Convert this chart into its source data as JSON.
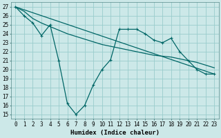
{
  "xlabel": "Humidex (Indice chaleur)",
  "bg_color": "#cce8e8",
  "grid_color": "#99cccc",
  "line_color": "#006666",
  "xlim": [
    -0.5,
    23.5
  ],
  "ylim": [
    14.5,
    27.5
  ],
  "xticks": [
    0,
    1,
    2,
    3,
    4,
    5,
    6,
    7,
    8,
    9,
    10,
    11,
    12,
    13,
    14,
    15,
    16,
    17,
    18,
    19,
    20,
    21,
    22,
    23
  ],
  "yticks": [
    15,
    16,
    17,
    18,
    19,
    20,
    21,
    22,
    23,
    24,
    25,
    26,
    27
  ],
  "series1_x": [
    0,
    1,
    2,
    3,
    4,
    5,
    6,
    7,
    8,
    9,
    10,
    11,
    12,
    13,
    14,
    15,
    16,
    17,
    18,
    19,
    20,
    21,
    22,
    23
  ],
  "series1_y": [
    27,
    26,
    25.2,
    23.8,
    25,
    21,
    16.2,
    15,
    16,
    18.3,
    20,
    21.1,
    24.5,
    24.5,
    24.5,
    24.0,
    23.3,
    23.0,
    23.5,
    22.0,
    21.0,
    20.0,
    19.5,
    19.5
  ],
  "series2_x": [
    0,
    1,
    2,
    3,
    4,
    5,
    6,
    7,
    8,
    9,
    10,
    11,
    12,
    13,
    14,
    15,
    16,
    17,
    18,
    19,
    20,
    21,
    22,
    23
  ],
  "series2_y": [
    27.0,
    26.5,
    25.7,
    25.2,
    24.8,
    24.4,
    24.0,
    23.7,
    23.4,
    23.1,
    22.8,
    22.6,
    22.4,
    22.2,
    22.0,
    21.8,
    21.6,
    21.5,
    21.4,
    21.2,
    21.0,
    20.8,
    20.5,
    20.2
  ],
  "series3_x": [
    0,
    23
  ],
  "series3_y": [
    27.0,
    19.5
  ],
  "tick_fontsize": 5.5,
  "xlabel_fontsize": 6.5,
  "linewidth": 0.9,
  "marker_size": 2.5
}
